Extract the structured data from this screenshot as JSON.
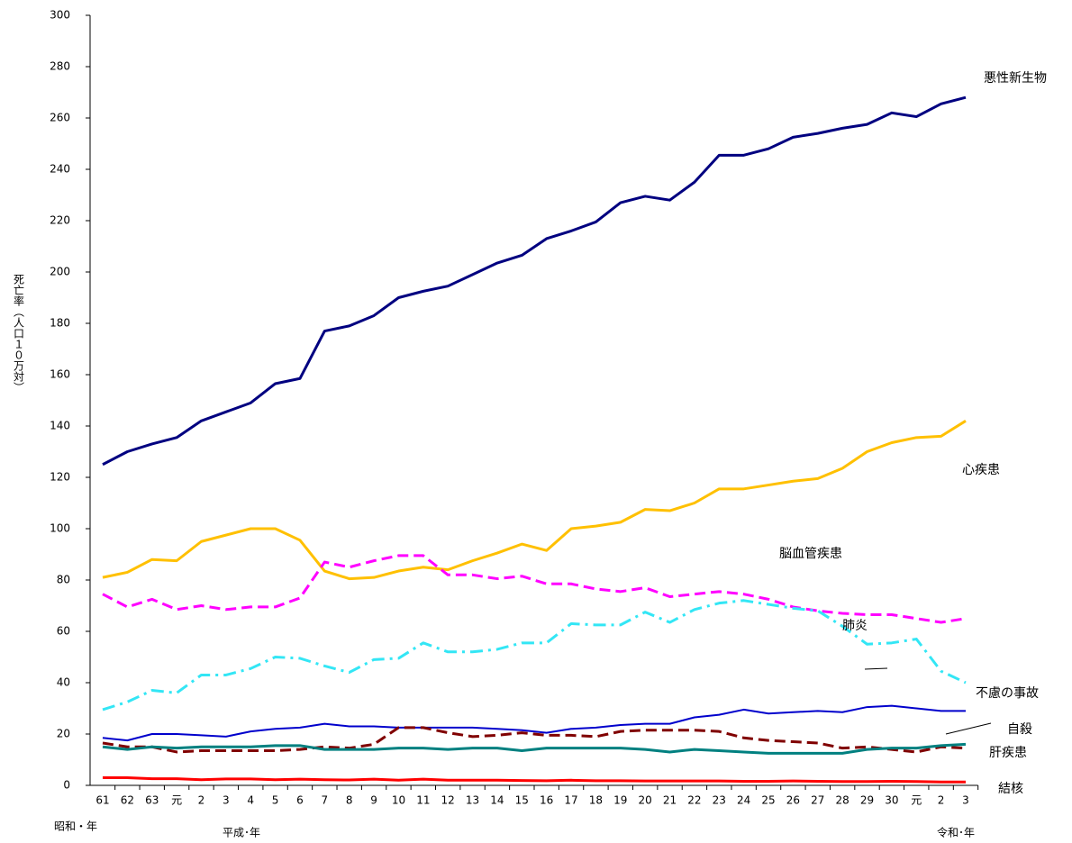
{
  "chart_data": {
    "type": "line",
    "y_label": "死亡率（人口１０万対）",
    "era_labels": [
      "昭和・年",
      "平成･年",
      "令和･年"
    ],
    "categories": [
      "61",
      "62",
      "63",
      "元",
      "2",
      "3",
      "4",
      "5",
      "6",
      "7",
      "8",
      "9",
      "10",
      "11",
      "12",
      "13",
      "14",
      "15",
      "16",
      "17",
      "18",
      "19",
      "20",
      "21",
      "22",
      "23",
      "24",
      "25",
      "26",
      "27",
      "28",
      "29",
      "30",
      "元",
      "2",
      "3"
    ],
    "ylim": [
      0,
      300
    ],
    "yticks": [
      0,
      20,
      40,
      60,
      80,
      100,
      120,
      140,
      160,
      180,
      200,
      220,
      240,
      260,
      280,
      300
    ],
    "series": [
      {
        "name": "悪性新生物",
        "color": "#000080",
        "line_style": "solid",
        "width": 3,
        "values": [
          125,
          130,
          133,
          135.5,
          142,
          145.5,
          149,
          156.5,
          158.5,
          177,
          179,
          183,
          190,
          192.5,
          194.5,
          199,
          203.5,
          206.5,
          213,
          216,
          219.5,
          227,
          229.5,
          228,
          235,
          245.5,
          245.5,
          248,
          252.5,
          254,
          256,
          257.5,
          262,
          260.5,
          265.5,
          268
        ]
      },
      {
        "name": "心疾患",
        "color": "#FFC000",
        "line_style": "solid",
        "width": 3,
        "values": [
          81,
          83,
          88,
          87.5,
          95,
          97.5,
          100,
          100,
          95.5,
          83.5,
          80.5,
          81,
          83.5,
          85,
          84,
          87.5,
          90.5,
          94,
          91.5,
          100,
          101,
          102.5,
          107.5,
          107,
          110,
          115.5,
          115.5,
          117,
          118.5,
          119.5,
          123.5,
          130,
          133.5,
          135.5,
          136,
          142
        ]
      },
      {
        "name": "脳血管疾患",
        "color": "#FF00FF",
        "line_style": "dashed",
        "width": 3,
        "values": [
          74.5,
          69.5,
          72.5,
          68.5,
          70,
          68.5,
          69.5,
          69.5,
          73,
          87,
          85,
          87.5,
          89.5,
          89.5,
          82,
          82,
          80.5,
          81.5,
          78.5,
          78.5,
          76.5,
          75.5,
          77,
          73.5,
          74.5,
          75.5,
          74.5,
          72.5,
          69.5,
          68,
          67,
          66.5,
          66.5,
          65,
          63.5,
          65
        ]
      },
      {
        "name": "肺炎",
        "color": "#33E6F5",
        "line_style": "dashdot",
        "width": 3,
        "values": [
          29.5,
          32.5,
          37,
          36,
          43,
          43,
          45.5,
          50,
          49.5,
          46.5,
          44,
          49,
          49.5,
          55.5,
          52,
          52,
          53,
          55.5,
          55.5,
          63,
          62.5,
          62.5,
          67.5,
          63.5,
          68.5,
          71,
          72,
          70.5,
          69,
          68,
          62,
          55,
          55.5,
          57,
          44.5,
          40
        ]
      },
      {
        "name": "不慮の事故",
        "color": "#0000CC",
        "line_style": "solid",
        "width": 2,
        "values": [
          18.5,
          17.5,
          20,
          20,
          19.5,
          19,
          21,
          22,
          22.5,
          24,
          23,
          23,
          22.5,
          22.5,
          22.5,
          22.5,
          22,
          21.5,
          20.5,
          22,
          22.5,
          23.5,
          24,
          24,
          26.5,
          27.5,
          29.5,
          28,
          28.5,
          29,
          28.5,
          30.5,
          31,
          30,
          29,
          29
        ]
      },
      {
        "name": "自殺",
        "color": "#800000",
        "line_style": "dashed",
        "width": 3,
        "values": [
          16.5,
          15,
          15,
          13,
          13.5,
          13.5,
          13.5,
          13.5,
          14,
          15,
          14.5,
          16,
          22.5,
          22.5,
          20.5,
          19,
          19.5,
          20.5,
          19.5,
          19.5,
          19,
          21,
          21.5,
          21.5,
          21.5,
          21,
          18.5,
          17.5,
          17,
          16.5,
          14.5,
          15,
          14,
          13,
          15,
          14.5
        ]
      },
      {
        "name": "肝疾患",
        "color": "#008080",
        "line_style": "solid",
        "width": 3,
        "values": [
          15,
          14,
          15,
          14.5,
          15,
          15,
          15,
          15.5,
          15.5,
          14,
          14,
          14,
          14.5,
          14.5,
          14,
          14.5,
          14.5,
          13.5,
          14.5,
          14.5,
          14.5,
          14.5,
          14,
          13,
          14,
          13.5,
          13,
          12.5,
          12.5,
          12.5,
          12.5,
          14,
          14.5,
          14.5,
          15.5,
          16
        ]
      },
      {
        "name": "結核",
        "color": "#FF0000",
        "line_style": "solid",
        "width": 3,
        "values": [
          3,
          3,
          2.6,
          2.6,
          2.2,
          2.5,
          2.5,
          2.2,
          2.4,
          2.2,
          2.1,
          2.4,
          2,
          2.4,
          2,
          2,
          2,
          1.9,
          1.8,
          2,
          1.8,
          1.8,
          1.7,
          1.7,
          1.7,
          1.7,
          1.6,
          1.6,
          1.7,
          1.6,
          1.5,
          1.5,
          1.6,
          1.5,
          1.3,
          1.3
        ]
      }
    ]
  }
}
